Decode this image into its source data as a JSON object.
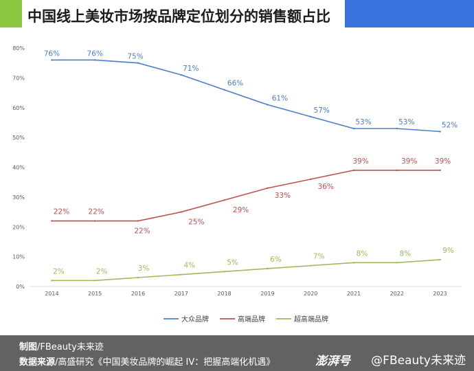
{
  "title": "中国线上美妆市场按品牌定位划分的销售额占比",
  "chart_data": {
    "type": "line",
    "x": [
      "2014",
      "2015",
      "2016",
      "2017",
      "2018",
      "2019",
      "2020",
      "2021",
      "2022",
      "2023"
    ],
    "y_ticks": [
      "0%",
      "10%",
      "20%",
      "30%",
      "40%",
      "50%",
      "60%",
      "70%",
      "80%"
    ],
    "ylim": [
      0,
      80
    ],
    "grid": false,
    "legend": "bottom",
    "series": [
      {
        "name": "大众品牌",
        "color": "#4a7ec9",
        "values": [
          76,
          76,
          75,
          71,
          66,
          61,
          57,
          53,
          53,
          52
        ],
        "labels": [
          "76%",
          "76%",
          "75%",
          "71%",
          "66%",
          "61%",
          "57%",
          "53%",
          "53%",
          "52%"
        ]
      },
      {
        "name": "高端品牌",
        "color": "#c0504d",
        "values": [
          22,
          22,
          22,
          25,
          29,
          33,
          36,
          39,
          39,
          39
        ],
        "labels": [
          "22%",
          "22%",
          "22%",
          "25%",
          "29%",
          "33%",
          "36%",
          "39%",
          "39%",
          "39%"
        ]
      },
      {
        "name": "超高端品牌",
        "color": "#9bbb59",
        "values": [
          2,
          2,
          3,
          4,
          5,
          6,
          7,
          8,
          8,
          9
        ],
        "labels": [
          "2%",
          "2%",
          "3%",
          "4%",
          "5%",
          "6%",
          "7%",
          "8%",
          "8%",
          "9%"
        ]
      }
    ]
  },
  "footer": {
    "maker_key": "制图",
    "maker_value": "/FBeauty未来迹",
    "source_key": "数据来源",
    "source_value": "/高盛研究《中国美妆品牌的崛起 IV：把握高端化机遇》"
  },
  "watermark": {
    "logo": "澎湃号",
    "handle": "@FBeauty未来迹"
  },
  "colors": {
    "accent_green": "#8dc63f",
    "accent_blue": "#3a73dd",
    "footer_bg": "#626262"
  }
}
